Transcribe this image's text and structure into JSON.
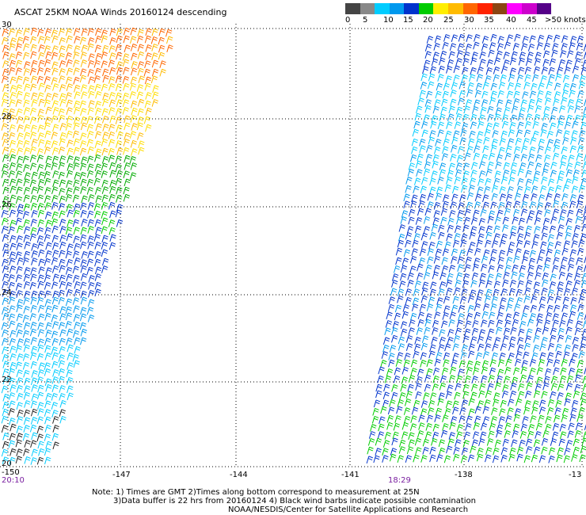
{
  "title": "ASCAT 25KM NOAA Winds 20160124 descending",
  "legend": {
    "colors": [
      "#444444",
      "#888888",
      "#00ccff",
      "#0099ee",
      "#0033cc",
      "#00cc00",
      "#ffee00",
      "#ffbb00",
      "#ff6600",
      "#ff2200",
      "#8b4513",
      "#ff00ff",
      "#cc00cc",
      "#550088"
    ],
    "labels": [
      "0",
      "5",
      "10",
      "15",
      "20",
      "25",
      "30",
      "35",
      "40",
      "45",
      ">50 knots"
    ]
  },
  "axes": {
    "lat_labels": [
      "30",
      "28",
      "26",
      "24",
      "22",
      "20"
    ],
    "lon_labels": [
      "-150",
      "-147",
      "-144",
      "-141",
      "-138",
      "-13"
    ],
    "lat_range": [
      20,
      30
    ],
    "lon_range": [
      -150,
      -135
    ]
  },
  "times": {
    "left": "20:10",
    "right": "18:29"
  },
  "notes": {
    "line1": "Note: 1) Times are GMT 2)Times along bottom correspond to measurement at 25N",
    "line2": "3)Data buffer is 22 hrs from 20160124 4) Black wind barbs indicate possible contamination",
    "line3": "NOAA/NESDIS/Center for Satellite Applications and Research"
  }
}
